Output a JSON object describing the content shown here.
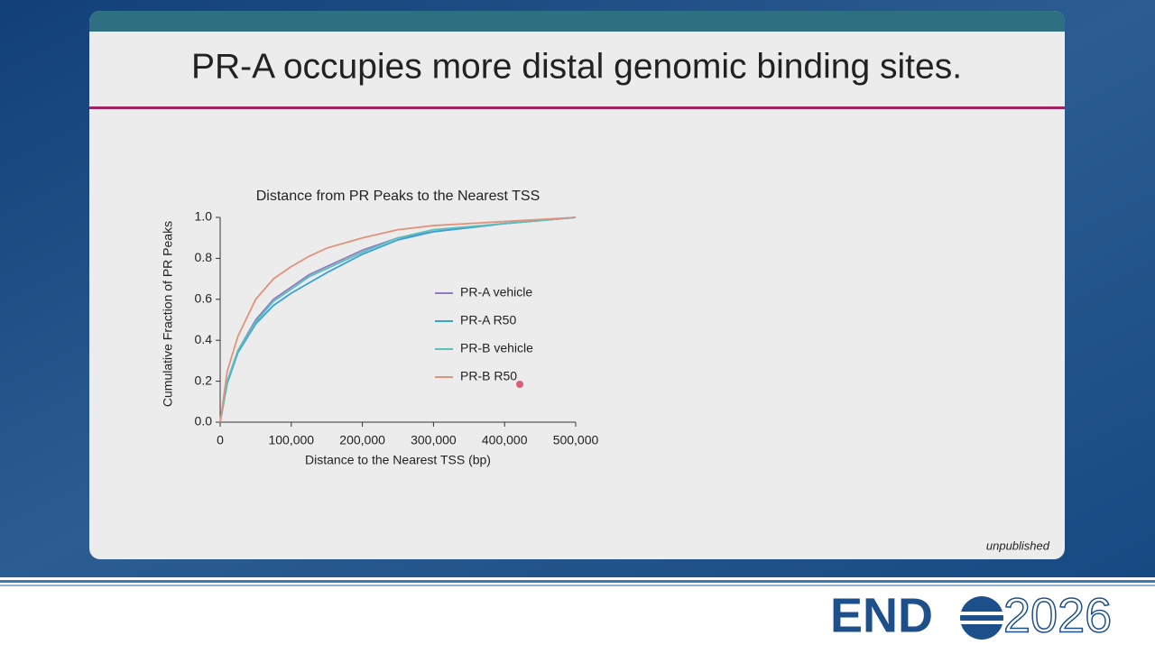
{
  "slide": {
    "title": "PR-A occupies more distal genomic binding sites.",
    "note": "unpublished"
  },
  "logo": {
    "left": "END",
    "right": "2026"
  },
  "chart_data": {
    "type": "line",
    "title": "Distance from PR Peaks to the Nearest TSS",
    "x_label": "Distance to the Nearest TSS (bp)",
    "y_label": "Cumulative Fraction of PR Peaks",
    "x": [
      0,
      10000,
      25000,
      50000,
      75000,
      100000,
      125000,
      150000,
      200000,
      250000,
      300000,
      400000,
      500000
    ],
    "series": [
      {
        "name": "PR-A vehicle",
        "color": "#8e7cc3",
        "values": [
          0,
          0.2,
          0.35,
          0.5,
          0.6,
          0.66,
          0.72,
          0.76,
          0.84,
          0.9,
          0.93,
          0.97,
          1.0
        ]
      },
      {
        "name": "PR-A R50",
        "color": "#3aa0d8",
        "values": [
          0,
          0.19,
          0.34,
          0.48,
          0.57,
          0.63,
          0.68,
          0.73,
          0.82,
          0.89,
          0.93,
          0.97,
          1.0
        ]
      },
      {
        "name": "PR-B vehicle",
        "color": "#5bbfba",
        "values": [
          0,
          0.2,
          0.35,
          0.49,
          0.59,
          0.65,
          0.71,
          0.75,
          0.83,
          0.9,
          0.94,
          0.97,
          1.0
        ]
      },
      {
        "name": "PR-B R50",
        "color": "#e0937a",
        "values": [
          0,
          0.25,
          0.42,
          0.6,
          0.7,
          0.76,
          0.81,
          0.85,
          0.9,
          0.94,
          0.96,
          0.98,
          1.0
        ]
      }
    ],
    "xlim": [
      0,
      500000
    ],
    "xticks": [
      0,
      {
        "value": 100000,
        "label": "100,000"
      },
      {
        "value": 200000,
        "label": "200,000"
      },
      {
        "value": 300000,
        "label": "300,000"
      },
      {
        "value": 400000,
        "label": "400,000"
      },
      {
        "value": 500000,
        "label": "500,000"
      }
    ],
    "ylim": [
      0,
      1
    ],
    "yticks": [
      {
        "value": 0,
        "label": "0.0"
      },
      0.2,
      0.4,
      0.6,
      0.8,
      {
        "value": 1,
        "label": "1.0"
      }
    ],
    "grid": false
  }
}
